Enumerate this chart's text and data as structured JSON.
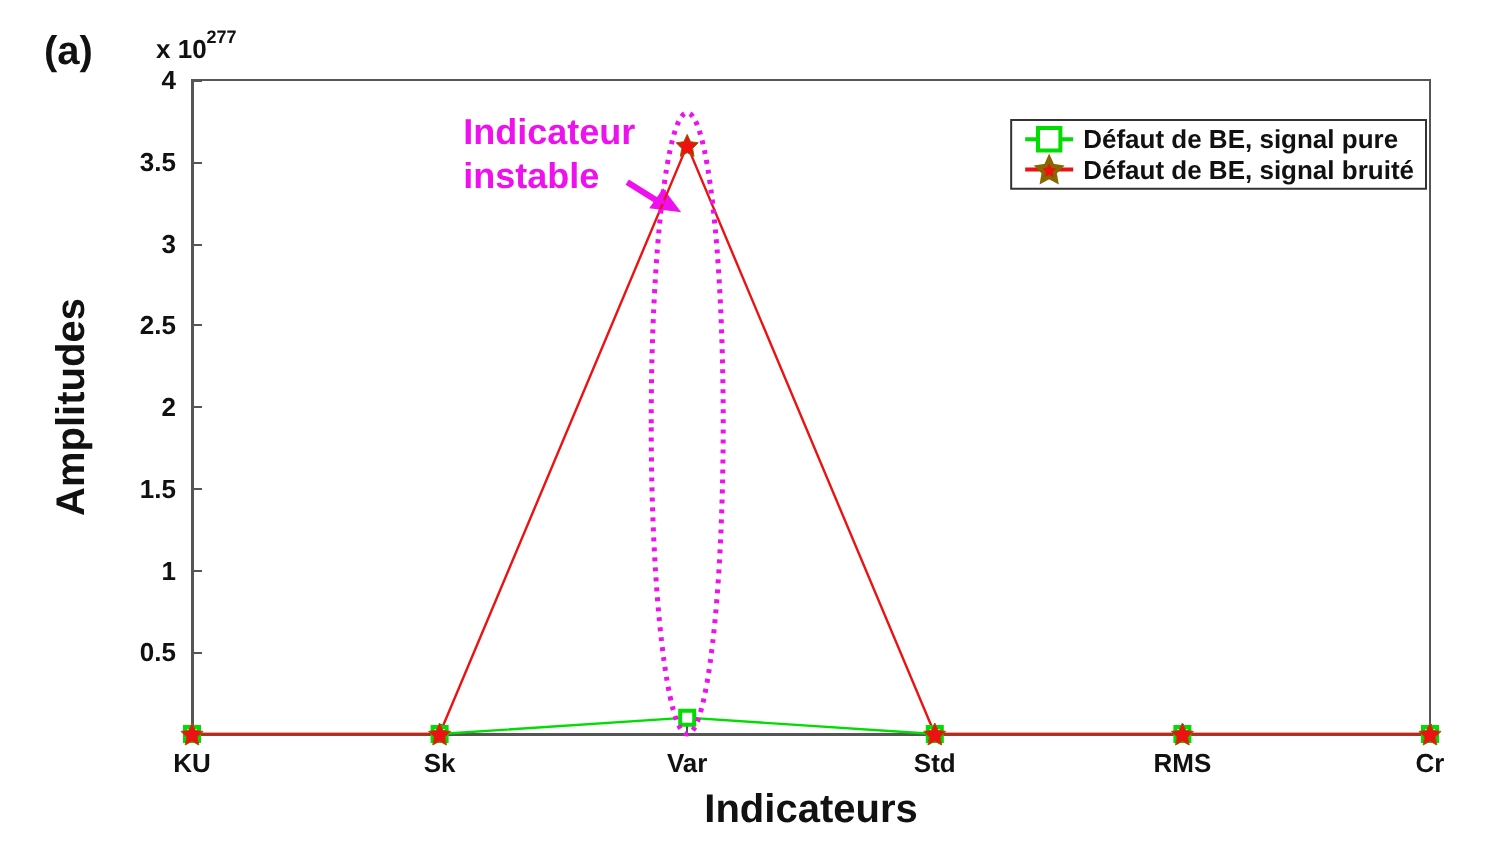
{
  "chart_data": {
    "type": "line",
    "xlabel": "Indicateurs",
    "ylabel": "Amplitudes",
    "categories": [
      "KU",
      "Sk",
      "Var",
      "Std",
      "RMS",
      "Cr"
    ],
    "series": [
      {
        "name": "Défaut de BE, signal pure",
        "color": "#00dd00",
        "marker": "square",
        "values": [
          0,
          0,
          0.1,
          0,
          0,
          0
        ]
      },
      {
        "name": "Défaut de BE, signal bruité",
        "color": "#ee1111",
        "marker": "star",
        "values": [
          0,
          0,
          3.6,
          0,
          0,
          0
        ]
      }
    ],
    "ylim": [
      0,
      4
    ],
    "yticks": [
      0.5,
      1,
      1.5,
      2,
      2.5,
      3,
      3.5,
      4
    ],
    "grid": false,
    "legend": "top right",
    "annotations": [
      "(a)",
      "x 10$^{277}$",
      "Indicateur instable"
    ]
  }
}
